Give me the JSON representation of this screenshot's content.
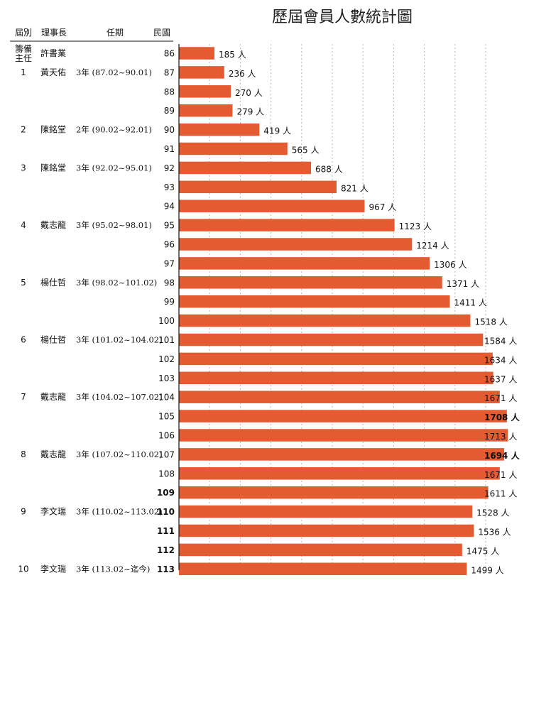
{
  "header": {
    "title": "歷屆會員人數統計圖",
    "col_session": "屆別",
    "col_chairman": "理事長",
    "col_term": "任期",
    "col_year": "民國"
  },
  "chairmen": [
    {
      "session": "籌備主任",
      "name": "許書業",
      "term": "",
      "row_year": 86
    },
    {
      "session": "1",
      "name": "黃天佑",
      "term": "3年 (87.02~90.01)",
      "row_year": 87
    },
    {
      "session": "2",
      "name": "陳銘堂",
      "term": "2年 (90.02~92.01)",
      "row_year": 90
    },
    {
      "session": "3",
      "name": "陳銘堂",
      "term": "3年 (92.02~95.01)",
      "row_year": 92
    },
    {
      "session": "4",
      "name": "戴志龍",
      "term": "3年 (95.02~98.01)",
      "row_year": 95
    },
    {
      "session": "5",
      "name": "楊仕哲",
      "term": "3年 (98.02~101.02)",
      "row_year": 98
    },
    {
      "session": "6",
      "name": "楊仕哲",
      "term": "3年 (101.02~104.02)",
      "row_year": 101
    },
    {
      "session": "7",
      "name": "戴志龍",
      "term": "3年 (104.02~107.02)",
      "row_year": 104
    },
    {
      "session": "8",
      "name": "戴志龍",
      "term": "3年 (107.02~110.02)",
      "row_year": 107
    },
    {
      "session": "9",
      "name": "李文瑞",
      "term": "3年 (110.02~113.02)",
      "row_year": 110
    },
    {
      "session": "10",
      "name": "李文瑞",
      "term": "3年 (113.02~迄今)",
      "row_year": 113
    }
  ],
  "chart_data": {
    "type": "bar",
    "orientation": "horizontal",
    "title": "歷屆會員人數統計圖",
    "categories": [
      "86",
      "87",
      "88",
      "89",
      "90",
      "91",
      "92",
      "93",
      "94",
      "95",
      "96",
      "97",
      "98",
      "99",
      "100",
      "101",
      "102",
      "103",
      "104",
      "105",
      "106",
      "107",
      "108",
      "109",
      "110",
      "111",
      "112",
      "113"
    ],
    "values": [
      185,
      236,
      270,
      279,
      419,
      565,
      688,
      821,
      967,
      1123,
      1214,
      1306,
      1371,
      1411,
      1518,
      1584,
      1634,
      1637,
      1671,
      1708,
      1713,
      1694,
      1671,
      1611,
      1528,
      1536,
      1475,
      1499
    ],
    "value_labels": [
      "185 人",
      "236 人",
      "270 人",
      "279 人",
      "419 人",
      "565 人",
      "688 人",
      "821 人",
      "967 人",
      "1123 人",
      "1214 人",
      "1306 人",
      "1371 人",
      "1411 人",
      "1518 人",
      "1584 人",
      "1634 人",
      "1637 人",
      "1671 人",
      "1708 人",
      "1713 人",
      "1694 人",
      "1671 人",
      "1611 人",
      "1528 人",
      "1536 人",
      "1475 人",
      "1499 人"
    ],
    "bold_value_indices": [
      19,
      21
    ],
    "bold_category_indices": [
      23,
      24,
      25,
      26,
      27
    ],
    "xlim": [
      0,
      1750
    ],
    "grid": "vertical dotted",
    "bar_color": "#e45a31",
    "unit": "人"
  }
}
